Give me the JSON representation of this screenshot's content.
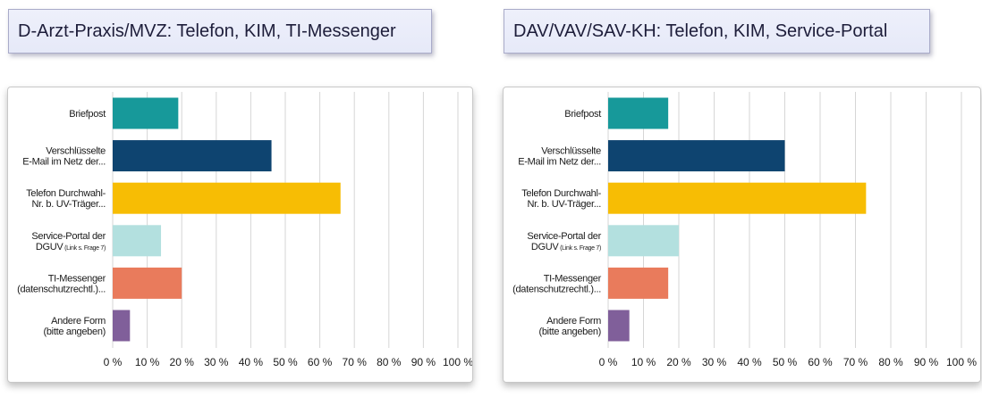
{
  "chart_data": [
    {
      "type": "bar",
      "orientation": "horizontal",
      "title": "D-Arzt-Praxis/MVZ: Telefon, KIM, TI-Messenger",
      "categories": [
        {
          "lines": [
            "Briefpost"
          ],
          "note": ""
        },
        {
          "lines": [
            "Verschlüsselte",
            "E-Mail im Netz der..."
          ],
          "note": ""
        },
        {
          "lines": [
            "Telefon Durchwahl-",
            "Nr. b. UV-Träger..."
          ],
          "note": ""
        },
        {
          "lines": [
            "Service-Portal der",
            "DGUV"
          ],
          "note": "(Link s. Frage 7)"
        },
        {
          "lines": [
            "TI-Messenger",
            "(datenschutzrechtl.)..."
          ],
          "note": ""
        },
        {
          "lines": [
            "Andere Form",
            "(bitte angeben)"
          ],
          "note": ""
        }
      ],
      "values": [
        19,
        46,
        66,
        14,
        20,
        5
      ],
      "colors": [
        "#17999a",
        "#0e4470",
        "#f7bd04",
        "#b3e0df",
        "#e97b5c",
        "#805f9a"
      ],
      "xlim": [
        0,
        100
      ],
      "xticks": [
        "0 %",
        "10 %",
        "20 %",
        "30 %",
        "40 %",
        "50 %",
        "60 %",
        "70 %",
        "80 %",
        "90 %",
        "100 %"
      ],
      "grid": true
    },
    {
      "type": "bar",
      "orientation": "horizontal",
      "title": "DAV/VAV/SAV-KH: Telefon, KIM, Service-Portal",
      "categories": [
        {
          "lines": [
            "Briefpost"
          ],
          "note": ""
        },
        {
          "lines": [
            "Verschlüsselte",
            "E-Mail im Netz der..."
          ],
          "note": ""
        },
        {
          "lines": [
            "Telefon Durchwahl-",
            "Nr. b. UV-Träger..."
          ],
          "note": ""
        },
        {
          "lines": [
            "Service-Portal der",
            "DGUV"
          ],
          "note": "(Link s. Frage 7)"
        },
        {
          "lines": [
            "TI-Messenger",
            "(datenschutzrechtl.)..."
          ],
          "note": ""
        },
        {
          "lines": [
            "Andere Form",
            "(bitte angeben)"
          ],
          "note": ""
        }
      ],
      "values": [
        17,
        50,
        73,
        20,
        17,
        6
      ],
      "colors": [
        "#17999a",
        "#0e4470",
        "#f7bd04",
        "#b3e0df",
        "#e97b5c",
        "#805f9a"
      ],
      "xlim": [
        0,
        100
      ],
      "xticks": [
        "0 %",
        "10 %",
        "20 %",
        "30 %",
        "40 %",
        "50 %",
        "60 %",
        "70 %",
        "80 %",
        "90 %",
        "100 %"
      ],
      "grid": true
    }
  ]
}
